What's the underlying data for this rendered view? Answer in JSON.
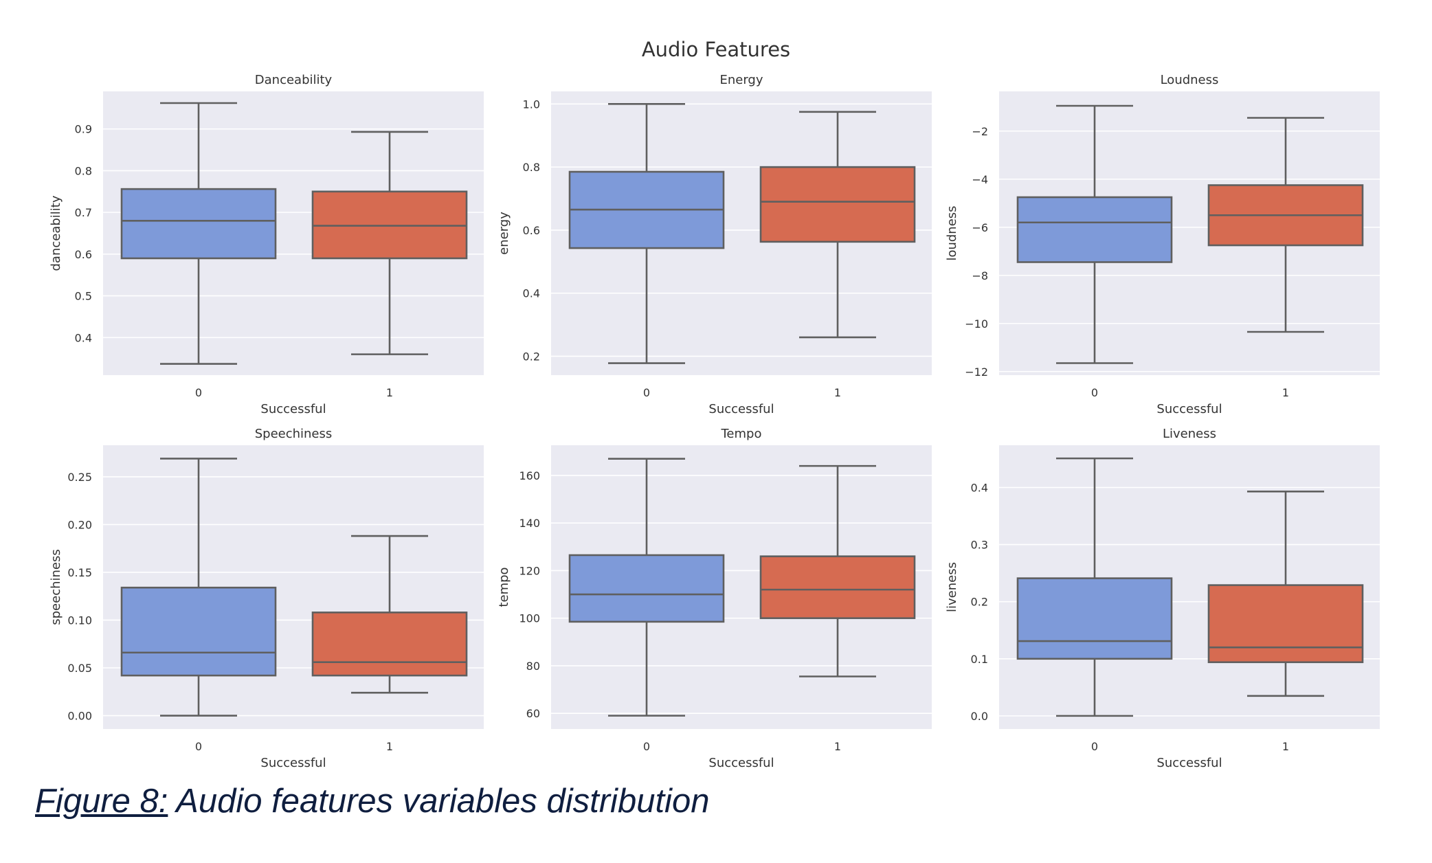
{
  "figure_title": "Audio Features",
  "caption": {
    "label": "Figure 8:",
    "text": "Audio features variables distribution"
  },
  "colors": {
    "panel_bg": "#eaeaf2",
    "grid": "#ffffff",
    "box_0": "#7e9ad9",
    "box_1": "#d66b51",
    "line": "#5f5f5f",
    "text": "#333333"
  },
  "chart_data": [
    {
      "type": "box",
      "title": "Danceability",
      "xlabel": "Successful",
      "ylabel": "danceability",
      "categories": [
        "0",
        "1"
      ],
      "ylim": [
        0.31,
        0.99
      ],
      "yticks": [
        0.4,
        0.5,
        0.6,
        0.7,
        0.8,
        0.9
      ],
      "ytick_labels": [
        "0.4",
        "0.5",
        "0.6",
        "0.7",
        "0.8",
        "0.9"
      ],
      "boxes": [
        {
          "category": "0",
          "whislo": 0.337,
          "q1": 0.59,
          "med": 0.68,
          "q3": 0.756,
          "whishi": 0.962
        },
        {
          "category": "1",
          "whislo": 0.36,
          "q1": 0.59,
          "med": 0.668,
          "q3": 0.75,
          "whishi": 0.893
        }
      ]
    },
    {
      "type": "box",
      "title": "Energy",
      "xlabel": "Successful",
      "ylabel": "energy",
      "categories": [
        "0",
        "1"
      ],
      "ylim": [
        0.14,
        1.04
      ],
      "yticks": [
        0.2,
        0.4,
        0.6,
        0.8,
        1.0
      ],
      "ytick_labels": [
        "0.2",
        "0.4",
        "0.6",
        "0.8",
        "1.0"
      ],
      "boxes": [
        {
          "category": "0",
          "whislo": 0.178,
          "q1": 0.543,
          "med": 0.665,
          "q3": 0.785,
          "whishi": 1.0
        },
        {
          "category": "1",
          "whislo": 0.26,
          "q1": 0.563,
          "med": 0.69,
          "q3": 0.8,
          "whishi": 0.975
        }
      ]
    },
    {
      "type": "box",
      "title": "Loudness",
      "xlabel": "Successful",
      "ylabel": "loudness",
      "categories": [
        "0",
        "1"
      ],
      "ylim": [
        -12.15,
        -0.35
      ],
      "yticks": [
        -12,
        -10,
        -8,
        -6,
        -4,
        -2
      ],
      "ytick_labels": [
        "−12",
        "−10",
        "−8",
        "−6",
        "−4",
        "−2"
      ],
      "boxes": [
        {
          "category": "0",
          "whislo": -11.65,
          "q1": -7.45,
          "med": -5.8,
          "q3": -4.75,
          "whishi": -0.95
        },
        {
          "category": "1",
          "whislo": -10.35,
          "q1": -6.75,
          "med": -5.5,
          "q3": -4.25,
          "whishi": -1.45
        }
      ]
    },
    {
      "type": "box",
      "title": "Speechiness",
      "xlabel": "Successful",
      "ylabel": "speechiness",
      "categories": [
        "0",
        "1"
      ],
      "ylim": [
        -0.014,
        0.283
      ],
      "yticks": [
        0.0,
        0.05,
        0.1,
        0.15,
        0.2,
        0.25
      ],
      "ytick_labels": [
        "0.00",
        "0.05",
        "0.10",
        "0.15",
        "0.20",
        "0.25"
      ],
      "boxes": [
        {
          "category": "0",
          "whislo": 0.0,
          "q1": 0.042,
          "med": 0.066,
          "q3": 0.134,
          "whishi": 0.269
        },
        {
          "category": "1",
          "whislo": 0.024,
          "q1": 0.042,
          "med": 0.056,
          "q3": 0.108,
          "whishi": 0.188
        }
      ]
    },
    {
      "type": "box",
      "title": "Tempo",
      "xlabel": "Successful",
      "ylabel": "tempo",
      "categories": [
        "0",
        "1"
      ],
      "ylim": [
        53.4,
        172.7
      ],
      "yticks": [
        60,
        80,
        100,
        120,
        140,
        160
      ],
      "ytick_labels": [
        "60",
        "80",
        "100",
        "120",
        "140",
        "160"
      ],
      "boxes": [
        {
          "category": "0",
          "whislo": 59,
          "q1": 98.5,
          "med": 110,
          "q3": 126.5,
          "whishi": 167
        },
        {
          "category": "1",
          "whislo": 75.5,
          "q1": 100,
          "med": 112,
          "q3": 126,
          "whishi": 164
        }
      ]
    },
    {
      "type": "box",
      "title": "Liveness",
      "xlabel": "Successful",
      "ylabel": "liveness",
      "categories": [
        "0",
        "1"
      ],
      "ylim": [
        -0.023,
        0.474
      ],
      "yticks": [
        0.0,
        0.1,
        0.2,
        0.3,
        0.4
      ],
      "ytick_labels": [
        "0.0",
        "0.1",
        "0.2",
        "0.3",
        "0.4"
      ],
      "boxes": [
        {
          "category": "0",
          "whislo": 0.0,
          "q1": 0.1,
          "med": 0.131,
          "q3": 0.241,
          "whishi": 0.451
        },
        {
          "category": "1",
          "whislo": 0.035,
          "q1": 0.094,
          "med": 0.12,
          "q3": 0.229,
          "whishi": 0.393
        }
      ]
    }
  ]
}
